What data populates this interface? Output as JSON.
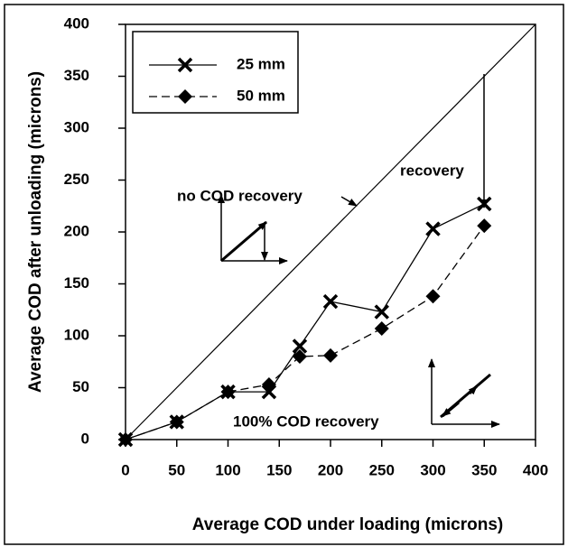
{
  "chart_data": {
    "type": "line",
    "xlabel": "Average COD under loading (microns)",
    "ylabel": "Average COD after unloading (microns)",
    "x": [
      0,
      50,
      100,
      140,
      170,
      200,
      250,
      300,
      350
    ],
    "series": [
      {
        "name": "25 mm",
        "color": "#000000",
        "marker": "x",
        "dash": false,
        "values": [
          0,
          17,
          46,
          46,
          90,
          133,
          123,
          203,
          227
        ]
      },
      {
        "name": "50 mm",
        "color": "#000000",
        "marker": "diamond",
        "dash": true,
        "values": [
          0,
          17,
          46,
          53,
          80,
          81,
          107,
          138,
          206
        ]
      }
    ],
    "reference_line": {
      "x": [
        0,
        400
      ],
      "y": [
        0,
        400
      ]
    },
    "annotations": [
      "no COD recovery",
      "recovery",
      "100% COD recovery"
    ],
    "xlim": [
      0,
      400
    ],
    "ylim": [
      0,
      400
    ],
    "xticks": [
      0,
      50,
      100,
      150,
      200,
      250,
      300,
      350,
      400
    ],
    "yticks": [
      0,
      50,
      100,
      150,
      200,
      250,
      300,
      350,
      400
    ],
    "legend": "upper left"
  }
}
